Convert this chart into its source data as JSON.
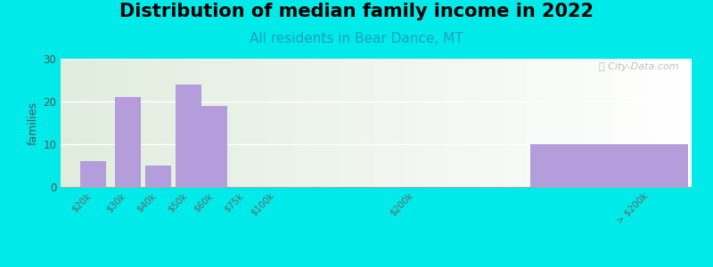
{
  "title": "Distribution of median family income in 2022",
  "subtitle": "All residents in Bear Dance, MT",
  "ylabel": "families",
  "background_outer": "#00eaea",
  "bar_color": "#b39ddb",
  "ylim": [
    0,
    30
  ],
  "yticks": [
    0,
    10,
    20,
    30
  ],
  "watermark": "Ⓣ City-Data.com",
  "title_fontsize": 15,
  "subtitle_fontsize": 11,
  "ylabel_fontsize": 9,
  "tick_labels": [
    "$20k",
    "$30k",
    "$40k",
    "$50k",
    "$60k",
    "$75k",
    "$100k",
    "$200k",
    "> $200k"
  ],
  "bar_values": [
    6,
    21,
    5,
    24,
    19,
    0,
    0,
    0,
    10
  ],
  "last_bar_value": 10,
  "subtitle_color": "#1a9fbf"
}
